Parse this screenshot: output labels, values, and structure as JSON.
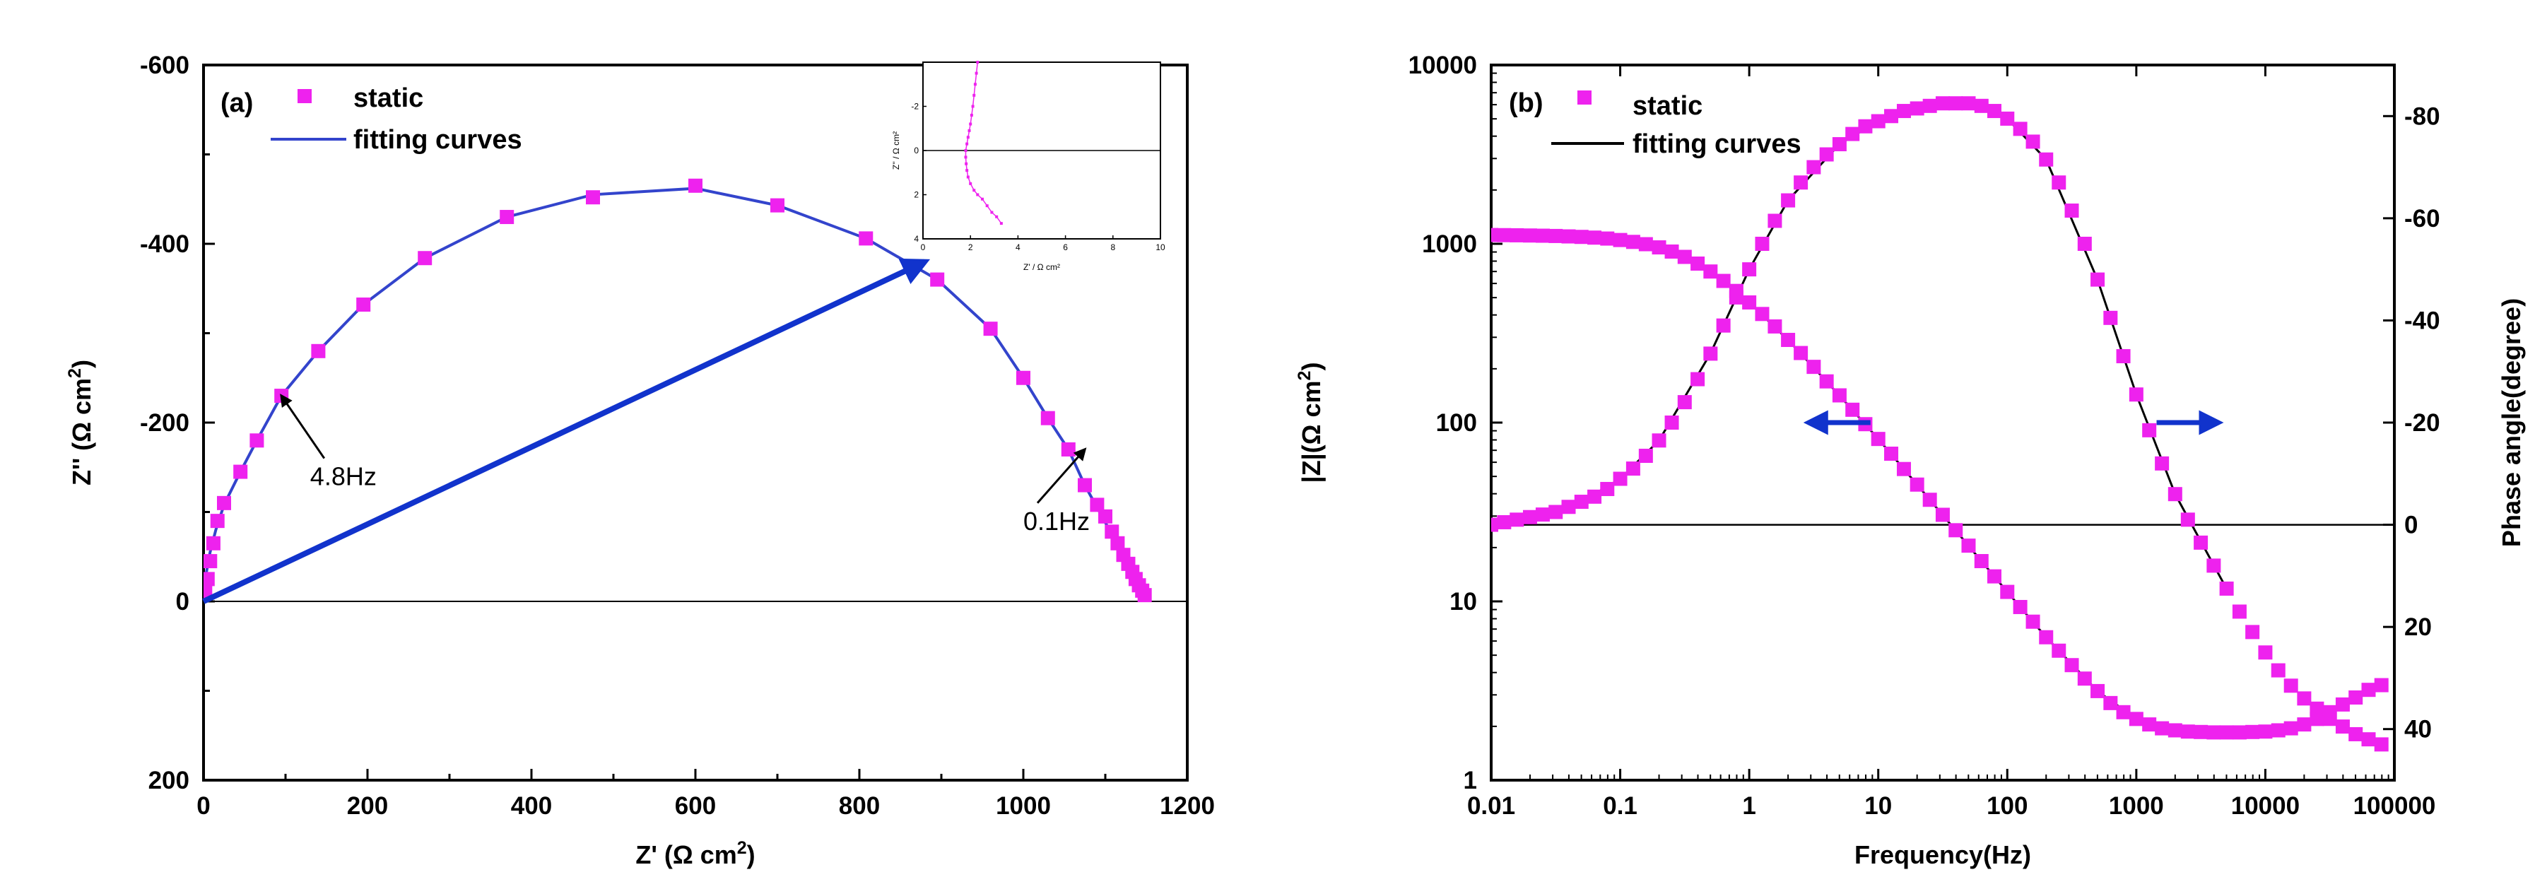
{
  "chart_data": [
    {
      "type": "scatter",
      "panel_label": "(a)",
      "xlabel": "Z' (Ω cm",
      "xlabel_sup": "2",
      "xlabel_close": ")",
      "ylabel": "Z'' (Ω cm",
      "ylabel_sup": "2",
      "ylabel_close": ")",
      "xlim": [
        0,
        1200
      ],
      "ylim": [
        -600,
        200
      ],
      "x_ticks": [
        "0",
        "200",
        "400",
        "600",
        "800",
        "1000",
        "1200"
      ],
      "y_ticks": [
        "-600",
        "-400",
        "-200",
        "0",
        "200"
      ],
      "legend": {
        "position": "top-left",
        "items": [
          "static",
          "fitting curves"
        ]
      },
      "series": [
        {
          "name": "static",
          "marker": "square",
          "color": "#ee22ee",
          "x": [
            2,
            5,
            8,
            12,
            17,
            25,
            45,
            65,
            95,
            140,
            195,
            270,
            370,
            475,
            600,
            700,
            808,
            895,
            960,
            1000,
            1030,
            1055,
            1075,
            1090,
            1100,
            1108,
            1115,
            1122,
            1128,
            1133,
            1137,
            1141,
            1145,
            1148
          ],
          "y": [
            -10,
            -25,
            -45,
            -65,
            -90,
            -110,
            -145,
            -180,
            -230,
            -280,
            -332,
            -384,
            -430,
            -452,
            -465,
            -443,
            -406,
            -360,
            -305,
            -250,
            -205,
            -170,
            -130,
            -108,
            -95,
            -78,
            -65,
            -52,
            -42,
            -33,
            -25,
            -18,
            -12,
            -7
          ]
        },
        {
          "name": "fitting curves",
          "line": "solid",
          "color": "#3344cc",
          "x": [
            0,
            3,
            8,
            15,
            25,
            45,
            65,
            95,
            140,
            195,
            270,
            370,
            475,
            600,
            700,
            808,
            895,
            960,
            1000,
            1030,
            1055,
            1075,
            1090,
            1105,
            1118,
            1130,
            1140,
            1148
          ],
          "y": [
            0,
            -30,
            -55,
            -80,
            -108,
            -145,
            -180,
            -230,
            -280,
            -332,
            -384,
            -430,
            -455,
            -462,
            -443,
            -406,
            -360,
            -305,
            -250,
            -205,
            -170,
            -130,
            -105,
            -80,
            -55,
            -32,
            -15,
            -5
          ]
        }
      ],
      "zero_line": 0,
      "arrow": {
        "from": [
          0,
          0
        ],
        "to": [
          880,
          -380
        ],
        "color": "#1133cc"
      },
      "annotations": [
        {
          "text": "4.8Hz",
          "point": [
            95,
            -230
          ],
          "text_at": [
            130,
            -130
          ]
        },
        {
          "text": "0.1Hz",
          "point": [
            1075,
            -170
          ],
          "text_at": [
            1000,
            -80
          ]
        }
      ],
      "inset": {
        "xlabel": "Z' / Ω cm²",
        "ylabel": "Z'' / Ω cm²",
        "xlim": [
          0,
          10
        ],
        "ylim": [
          -4,
          4
        ],
        "x_ticks": [
          "0",
          "2",
          "4",
          "6",
          "8",
          "10"
        ],
        "y_ticks": [
          "-2",
          "0",
          "2",
          "4"
        ],
        "x": [
          2.3,
          2.25,
          2.2,
          2.15,
          2.1,
          2.05,
          2.0,
          1.95,
          1.9,
          1.85,
          1.8,
          1.8,
          1.82,
          1.85,
          1.9,
          2.0,
          2.15,
          2.3,
          2.5,
          2.7,
          2.9,
          3.1,
          3.3
        ],
        "y": [
          -4.0,
          -3.5,
          -3.0,
          -2.5,
          -2.0,
          -1.6,
          -1.2,
          -0.9,
          -0.6,
          -0.3,
          0.0,
          0.3,
          0.6,
          0.9,
          1.2,
          1.5,
          1.8,
          2.0,
          2.2,
          2.5,
          2.8,
          3.0,
          3.3
        ]
      }
    },
    {
      "type": "scatter",
      "panel_label": "(b)",
      "xlabel": "Frequency(Hz)",
      "ylabel": "|Z|(Ω cm",
      "ylabel_sup": "2",
      "ylabel_close": ")",
      "ylabel_right": "Phase angle(degree)",
      "x_scale": "log",
      "xlim": [
        0.01,
        100000
      ],
      "y_scale": "log",
      "ylim": [
        1,
        10000
      ],
      "y2lim": [
        50,
        -90
      ],
      "x_ticks": [
        "0.01",
        "0.1",
        "1",
        "10",
        "100",
        "1000",
        "10000",
        "100000"
      ],
      "y_ticks": [
        "1",
        "10",
        "100",
        "1000",
        "10000"
      ],
      "y2_ticks": [
        "-80",
        "-60",
        "-40",
        "-20",
        "0",
        "20",
        "40"
      ],
      "legend": {
        "position": "top-left",
        "items": [
          "static",
          "fitting curves"
        ]
      },
      "series": [
        {
          "name": "|Z| static",
          "axis": "left",
          "marker": "square",
          "color": "#ee22ee",
          "x": [
            0.01,
            0.0126,
            0.0158,
            0.02,
            0.0251,
            0.0316,
            0.0398,
            0.0501,
            0.0631,
            0.0794,
            0.1,
            0.126,
            0.158,
            0.2,
            0.251,
            0.316,
            0.398,
            0.501,
            0.631,
            0.794,
            1,
            1.26,
            1.58,
            2,
            2.51,
            3.16,
            3.98,
            5.01,
            6.31,
            7.94,
            10,
            12.6,
            15.8,
            20,
            25.1,
            31.6,
            39.8,
            50.1,
            63.1,
            79.4,
            100,
            126,
            158,
            200,
            251,
            316,
            398,
            501,
            631,
            794,
            1000,
            1260,
            1580,
            2000,
            2510,
            3160,
            3980,
            5010,
            6310,
            7940,
            10000,
            12600,
            15800,
            20000,
            25100,
            31600,
            39800,
            50100,
            63100,
            79400
          ],
          "y": [
            1120,
            1118,
            1116,
            1113,
            1110,
            1106,
            1100,
            1093,
            1083,
            1070,
            1050,
            1025,
            995,
            955,
            905,
            845,
            775,
            700,
            620,
            545,
            470,
            405,
            345,
            290,
            245,
            205,
            170,
            142,
            118,
            98,
            81,
            67,
            55,
            45,
            37,
            30.5,
            25,
            20.5,
            16.8,
            13.8,
            11.3,
            9.3,
            7.7,
            6.3,
            5.3,
            4.4,
            3.7,
            3.15,
            2.7,
            2.4,
            2.2,
            2.05,
            1.95,
            1.9,
            1.87,
            1.86,
            1.85,
            1.85,
            1.85,
            1.86,
            1.87,
            1.9,
            1.95,
            2.05,
            2.2,
            2.4,
            2.65,
            2.9,
            3.2,
            3.4
          ]
        },
        {
          "name": "Phase static",
          "axis": "right",
          "marker": "square",
          "color": "#ee22ee",
          "x": [
            0.01,
            0.0126,
            0.0158,
            0.02,
            0.0251,
            0.0316,
            0.0398,
            0.0501,
            0.0631,
            0.0794,
            0.1,
            0.126,
            0.158,
            0.2,
            0.251,
            0.316,
            0.398,
            0.501,
            0.631,
            0.794,
            1,
            1.26,
            1.58,
            2,
            2.51,
            3.16,
            3.98,
            5.01,
            6.31,
            7.94,
            10,
            12.6,
            15.8,
            20,
            25.1,
            31.6,
            39.8,
            50.1,
            63.1,
            79.4,
            100,
            126,
            158,
            200,
            251,
            316,
            398,
            501,
            631,
            794,
            1000,
            1260,
            1580,
            2000,
            2510,
            3160,
            3980,
            5010,
            6310,
            7940,
            10000,
            12600,
            15800,
            20000,
            25100,
            31600,
            39800,
            50100,
            63100,
            79400
          ],
          "y": [
            0,
            -0.5,
            -1,
            -1.5,
            -2,
            -2.5,
            -3.5,
            -4.5,
            -5.5,
            -7,
            -9,
            -11,
            -13.5,
            -16.5,
            -20,
            -24,
            -28.5,
            -33.5,
            -39,
            -44.5,
            -50,
            -55,
            -59.5,
            -63.5,
            -67,
            -70,
            -72.5,
            -74.5,
            -76.5,
            -78,
            -79,
            -80,
            -81,
            -81.5,
            -82,
            -82.5,
            -82.5,
            -82.5,
            -82,
            -81,
            -79.5,
            -77.5,
            -75,
            -71.5,
            -67,
            -61.5,
            -55,
            -48,
            -40.5,
            -33,
            -25.5,
            -18.5,
            -12,
            -6,
            -1,
            3.5,
            8,
            12.5,
            17,
            21,
            25,
            28.5,
            31.5,
            34,
            36,
            38,
            39.5,
            41,
            42,
            43
          ]
        },
        {
          "name": "|Z| fitting curves",
          "axis": "left",
          "line": "solid",
          "color": "#000000",
          "x": [
            0.01,
            0.02,
            0.05,
            0.1,
            0.2,
            0.5,
            1,
            2,
            5,
            10,
            20,
            50,
            100,
            200,
            500,
            1000,
            2000,
            5000
          ],
          "y": [
            1120,
            1113,
            1093,
            1050,
            955,
            700,
            470,
            290,
            142,
            81,
            45,
            20.5,
            11.3,
            6.3,
            3.15,
            2.2,
            1.9,
            1.85
          ]
        },
        {
          "name": "Phase fitting curves",
          "axis": "right",
          "line": "solid",
          "color": "#000000",
          "x": [
            0.01,
            0.02,
            0.05,
            0.1,
            0.2,
            0.5,
            1,
            2,
            5,
            10,
            20,
            50,
            100,
            200,
            500,
            1000,
            2000,
            5000
          ],
          "y": [
            0,
            -1.5,
            -4.5,
            -9,
            -16.5,
            -33.5,
            -50,
            -63.5,
            -74.5,
            -79,
            -81.5,
            -82.5,
            -79.5,
            -71.5,
            -48,
            -25.5,
            -6,
            12.5
          ]
        }
      ],
      "reference_line_phase": 0,
      "arrows": [
        {
          "direction": "left",
          "axis": "left",
          "x": 5,
          "y": 100,
          "color": "#1133cc"
        },
        {
          "direction": "right",
          "axis": "right",
          "x": 2500,
          "y": -20,
          "color": "#1133cc"
        }
      ]
    }
  ]
}
